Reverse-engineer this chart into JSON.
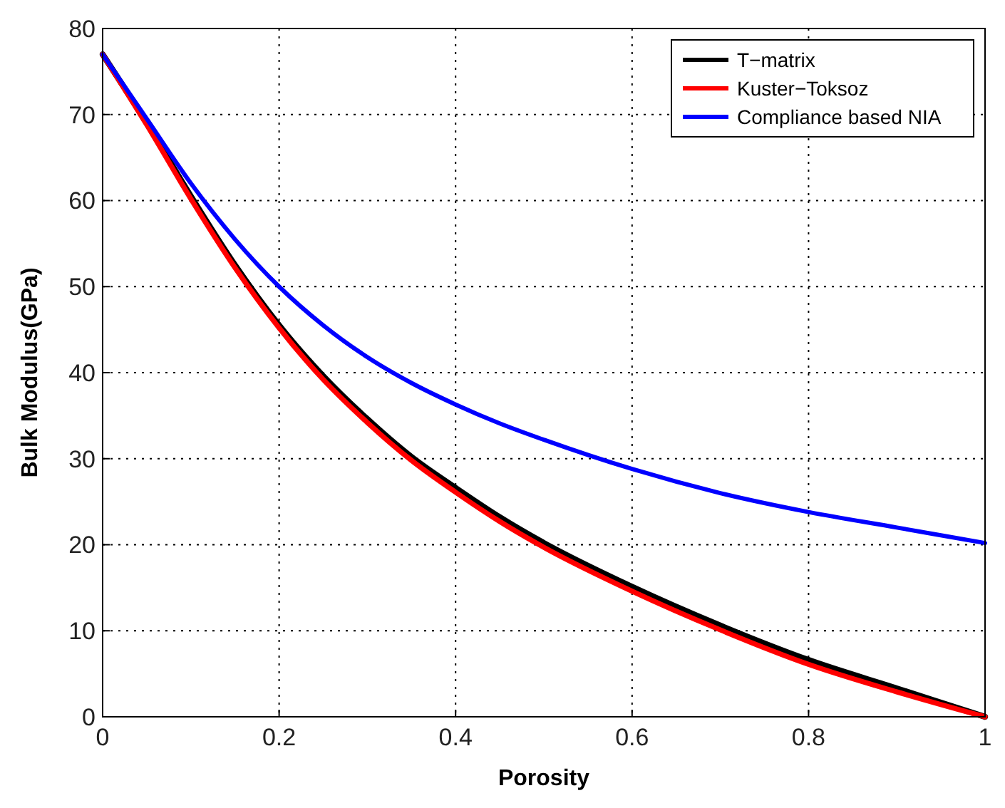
{
  "chart_data": {
    "type": "line",
    "xlabel": "Porosity",
    "ylabel": "Bulk Modulus(GPa)",
    "x": [
      0,
      0.05,
      0.1,
      0.15,
      0.2,
      0.25,
      0.3,
      0.35,
      0.4,
      0.45,
      0.5,
      0.6,
      0.7,
      0.8,
      0.9,
      1
    ],
    "series": [
      {
        "name": "T−matrix",
        "color": "#000000",
        "values": [
          77,
          69,
          60.5,
          52.5,
          45.5,
          39.6,
          34.6,
          30.2,
          26.6,
          23.2,
          20.2,
          15.1,
          10.6,
          6.6,
          3.3,
          0
        ]
      },
      {
        "name": "Kuster−Toksoz",
        "color": "#ff0000",
        "values": [
          77,
          68.8,
          60.2,
          52.2,
          45.2,
          39.2,
          34.2,
          29.8,
          26.1,
          22.7,
          19.7,
          14.6,
          10.1,
          6.1,
          2.9,
          0
        ]
      },
      {
        "name": "Compliance based NIA",
        "color": "#0000ff",
        "values": [
          77,
          69.5,
          62,
          55.5,
          50,
          45.5,
          41.8,
          38.8,
          36.3,
          34.1,
          32.2,
          28.8,
          26,
          23.8,
          22,
          20.2
        ]
      }
    ],
    "xlim": [
      0,
      1
    ],
    "xticks": [
      0,
      0.2,
      0.4,
      0.6,
      0.8,
      1
    ],
    "ylim": [
      0,
      80
    ],
    "yticks": [
      0,
      10,
      20,
      30,
      40,
      50,
      60,
      70,
      80
    ],
    "grid": true,
    "legend": "top right",
    "line_style": "solid",
    "marker": "none"
  }
}
